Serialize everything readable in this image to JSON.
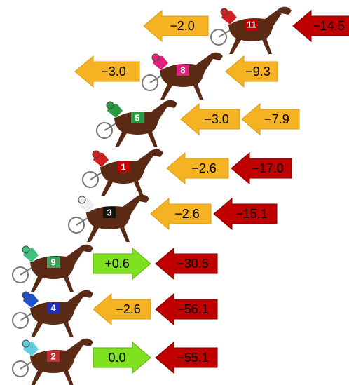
{
  "rows": [
    {
      "horse": "11",
      "arrows": [
        {
          "label": "−2.0",
          "direction": "left",
          "color": "orange"
        },
        {
          "label": "−14.5",
          "direction": "left",
          "color": "red"
        }
      ]
    },
    {
      "horse": "8",
      "arrows": [
        {
          "label": "−3.0",
          "direction": "left",
          "color": "orange"
        },
        {
          "label": "−9.3",
          "direction": "left",
          "color": "orange"
        }
      ]
    },
    {
      "horse": "5",
      "arrows": [
        {
          "label": "−3.0",
          "direction": "left",
          "color": "orange"
        },
        {
          "label": "−7.9",
          "direction": "left",
          "color": "orange"
        }
      ]
    },
    {
      "horse": "1",
      "arrows": [
        {
          "label": "−2.6",
          "direction": "left",
          "color": "orange"
        },
        {
          "label": "−17.0",
          "direction": "left",
          "color": "red"
        }
      ]
    },
    {
      "horse": "3",
      "arrows": [
        {
          "label": "−2.6",
          "direction": "left",
          "color": "orange"
        },
        {
          "label": "−15.1",
          "direction": "left",
          "color": "red"
        }
      ]
    },
    {
      "horse": "9",
      "arrows": [
        {
          "label": "+0.6",
          "direction": "right",
          "color": "green"
        },
        {
          "label": "−30.5",
          "direction": "left",
          "color": "red"
        }
      ]
    },
    {
      "horse": "4",
      "arrows": [
        {
          "label": "−2.6",
          "direction": "left",
          "color": "orange"
        },
        {
          "label": "−56.1",
          "direction": "left",
          "color": "red"
        }
      ]
    },
    {
      "horse": "2",
      "arrows": [
        {
          "label": "0.0",
          "direction": "right",
          "color": "green"
        },
        {
          "label": "−55.1",
          "direction": "left",
          "color": "red"
        }
      ]
    }
  ]
}
